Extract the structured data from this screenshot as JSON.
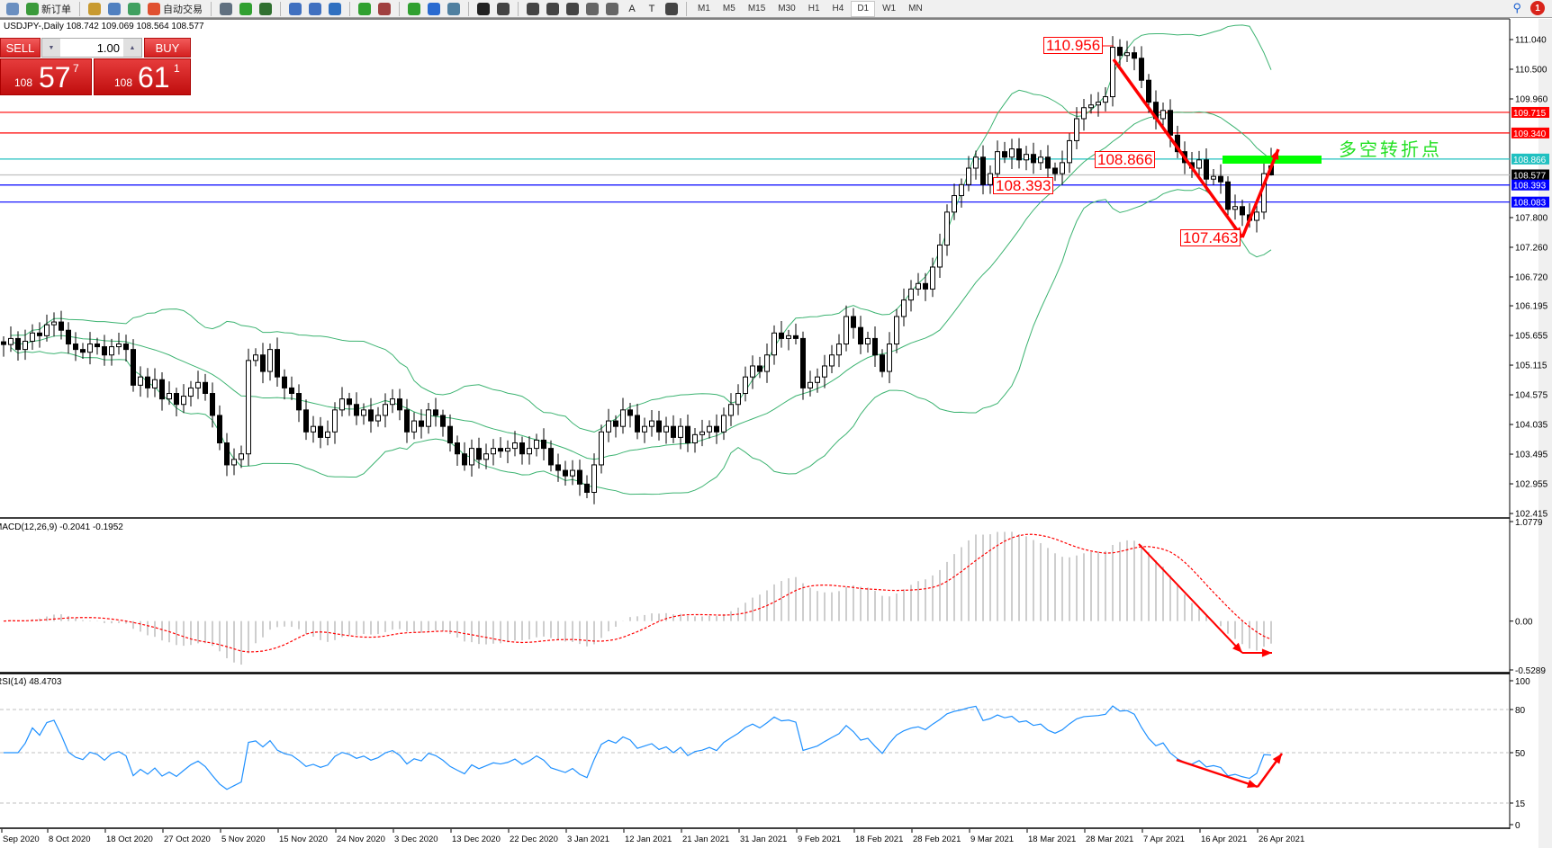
{
  "toolbar": {
    "items": [
      {
        "icon": "zoom-icon",
        "label": ""
      },
      {
        "icon": "new-order-icon",
        "label": "新订单"
      },
      {
        "icon": "market-watch-icon",
        "label": ""
      },
      {
        "icon": "history-icon",
        "label": ""
      },
      {
        "icon": "signals-icon",
        "label": ""
      },
      {
        "icon": "auto-trading-icon",
        "label": "自动交易"
      },
      {
        "icon": "bar-chart-icon",
        "label": ""
      },
      {
        "icon": "candlestick-icon",
        "label": ""
      },
      {
        "icon": "line-chart-icon",
        "label": ""
      },
      {
        "icon": "zoom-in-icon",
        "label": ""
      },
      {
        "icon": "zoom-out-icon",
        "label": ""
      },
      {
        "icon": "tile-windows-icon",
        "label": ""
      },
      {
        "icon": "chart-shift-icon",
        "label": ""
      },
      {
        "icon": "autoscroll-icon",
        "label": ""
      },
      {
        "icon": "indicators-icon",
        "label": ""
      },
      {
        "icon": "periods-icon",
        "label": ""
      },
      {
        "icon": "templates-icon",
        "label": ""
      },
      {
        "icon": "cursor-icon",
        "label": ""
      },
      {
        "icon": "crosshair-icon",
        "label": ""
      },
      {
        "icon": "vertical-line-icon",
        "label": ""
      },
      {
        "icon": "horizontal-line-icon",
        "label": ""
      },
      {
        "icon": "trendline-icon",
        "label": ""
      },
      {
        "icon": "equidistant-channel-icon",
        "label": ""
      },
      {
        "icon": "fibonacci-icon",
        "label": ""
      },
      {
        "icon": "text-icon",
        "label": "A"
      },
      {
        "icon": "text-label-icon",
        "label": "T"
      },
      {
        "icon": "arrows-icon",
        "label": ""
      }
    ],
    "timeframes": [
      "M1",
      "M5",
      "M15",
      "M30",
      "H1",
      "H4",
      "D1",
      "W1",
      "MN"
    ],
    "active_timeframe": "D1",
    "notification_count": "1"
  },
  "symbol_line": "USDJPY-,Daily  108.742 109.069 108.564 108.577",
  "trade_panel": {
    "sell_label": "SELL",
    "buy_label": "BUY",
    "lot": "1.00",
    "sell_price": {
      "prefix": "108",
      "big": "57",
      "sup": "7"
    },
    "buy_price": {
      "prefix": "108",
      "big": "61",
      "sup": "1"
    }
  },
  "annotations": {
    "high_label": "110.956",
    "mid_label": "108.866",
    "support_label": "108.393",
    "low_label": "107.463",
    "pivot_text": "多空转折点"
  },
  "colors": {
    "bull": "#ffffff",
    "bear": "#000000",
    "bands": "#3cb371",
    "resistance": "#ff0000",
    "pivot": "#20c0c0",
    "support": "#0000ff",
    "rsi": "#1e90ff",
    "signal": "#ff0000",
    "arrow": "#ff0000",
    "pivot_zone": "#00ff00"
  },
  "chart_data": {
    "type": "candlestick",
    "symbol": "USDJPY-",
    "timeframe": "Daily",
    "last_bar": {
      "open": 108.742,
      "high": 109.069,
      "low": 108.564,
      "close": 108.577
    },
    "closes": [
      105.49,
      105.6,
      105.4,
      105.55,
      105.7,
      105.65,
      105.85,
      105.9,
      105.75,
      105.5,
      105.4,
      105.35,
      105.5,
      105.45,
      105.3,
      105.45,
      105.5,
      105.4,
      104.75,
      104.9,
      104.7,
      104.85,
      104.5,
      104.6,
      104.4,
      104.55,
      104.7,
      104.8,
      104.6,
      104.2,
      103.7,
      103.3,
      103.4,
      103.5,
      105.2,
      105.3,
      105.0,
      105.4,
      104.9,
      104.7,
      104.6,
      104.3,
      103.9,
      104.0,
      103.8,
      103.9,
      104.3,
      104.5,
      104.4,
      104.2,
      104.3,
      104.1,
      104.2,
      104.4,
      104.5,
      104.3,
      103.9,
      104.1,
      104.0,
      104.3,
      104.2,
      104.0,
      103.7,
      103.5,
      103.3,
      103.6,
      103.4,
      103.5,
      103.6,
      103.55,
      103.6,
      103.7,
      103.5,
      103.6,
      103.75,
      103.6,
      103.3,
      103.2,
      103.1,
      103.2,
      102.95,
      102.8,
      103.3,
      103.9,
      104.1,
      104.0,
      104.3,
      104.2,
      103.9,
      104.0,
      104.1,
      103.9,
      104.0,
      103.8,
      104.0,
      103.7,
      103.85,
      103.9,
      104.0,
      103.9,
      104.2,
      104.4,
      104.6,
      104.9,
      105.1,
      105.0,
      105.3,
      105.7,
      105.6,
      105.65,
      105.6,
      104.7,
      104.8,
      104.9,
      105.1,
      105.3,
      105.5,
      106.0,
      105.8,
      105.5,
      105.6,
      105.3,
      105.0,
      105.5,
      106.0,
      106.3,
      106.5,
      106.6,
      106.5,
      106.9,
      107.3,
      107.9,
      108.2,
      108.4,
      108.7,
      108.9,
      108.4,
      108.6,
      109.0,
      108.9,
      109.05,
      108.85,
      108.95,
      108.8,
      108.9,
      108.7,
      108.6,
      108.8,
      109.2,
      109.6,
      109.8,
      109.85,
      109.9,
      110.0,
      110.9,
      110.75,
      110.8,
      110.7,
      110.3,
      109.9,
      109.6,
      109.75,
      109.3,
      109.0,
      108.8,
      108.7,
      108.85,
      108.5,
      108.55,
      108.45,
      107.95,
      108.0,
      107.85,
      107.75,
      107.9,
      108.6,
      108.742
    ],
    "ylim": [
      102.35,
      111.4
    ],
    "price_ticks": [
      "111.040",
      "110.500",
      "109.960",
      "107.800",
      "107.260",
      "106.720",
      "106.195",
      "105.655",
      "105.115",
      "104.575",
      "104.035",
      "103.495",
      "102.955",
      "102.415"
    ],
    "horizontal_lines": [
      {
        "price": "109.715",
        "color": "#ff0000",
        "label_bg": "#ff0000"
      },
      {
        "price": "109.340",
        "color": "#ff0000",
        "label_bg": "#ff0000"
      },
      {
        "price": "108.866",
        "color": "#20c0c0",
        "label_bg": "#20c0c0"
      },
      {
        "price": "108.577",
        "color": "#c0c0c0",
        "label_bg": "#000000"
      },
      {
        "price": "108.393",
        "color": "#0000ff",
        "label_bg": "#0000ff"
      },
      {
        "price": "108.083",
        "color": "#0000ff",
        "label_bg": "#0000ff"
      }
    ],
    "bollinger": {
      "period": 20,
      "deviation": 2
    },
    "x_labels": [
      "Sep 2020",
      "8 Oct 2020",
      "18 Oct 2020",
      "27 Oct 2020",
      "5 Nov 2020",
      "15 Nov 2020",
      "24 Nov 2020",
      "3 Dec 2020",
      "13 Dec 2020",
      "22 Dec 2020",
      "3 Jan 2021",
      "12 Jan 2021",
      "21 Jan 2021",
      "31 Jan 2021",
      "9 Feb 2021",
      "18 Feb 2021",
      "28 Feb 2021",
      "9 Mar 2021",
      "18 Mar 2021",
      "28 Mar 2021",
      "7 Apr 2021",
      "16 Apr 2021",
      "26 Apr 2021"
    ],
    "macd": {
      "label": "MACD(12,26,9) -0.2041 -0.1952",
      "ylim": [
        -0.5289,
        1.0779
      ],
      "ticks": [
        "1.0779",
        "0.00",
        "-0.5289"
      ]
    },
    "rsi": {
      "label": "RSI(14) 48.4703",
      "ylim": [
        0,
        100
      ],
      "ticks": [
        "100",
        "80",
        "50",
        "15",
        "0"
      ],
      "levels": [
        80,
        50,
        15
      ]
    }
  }
}
